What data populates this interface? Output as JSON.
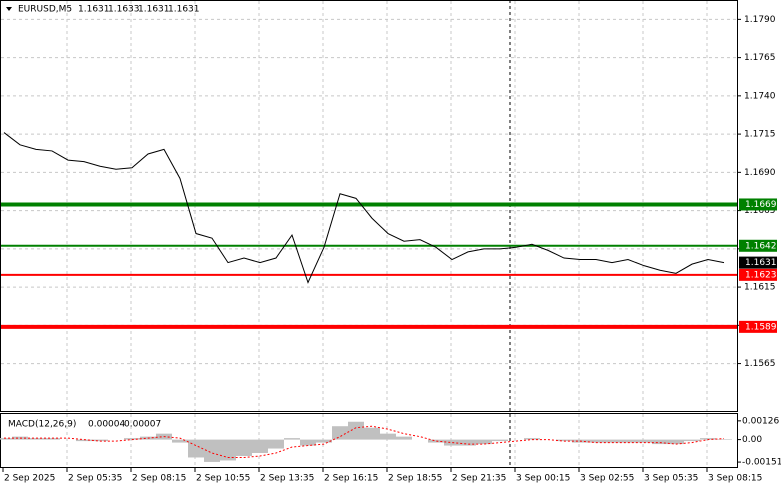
{
  "chart_data": {
    "type": "line",
    "series": [
      {
        "name": "EURUSD,M5",
        "color": "#000000",
        "values": [
          1.1716,
          1.1708,
          1.1705,
          1.1704,
          1.1698,
          1.1697,
          1.1694,
          1.1692,
          1.1693,
          1.1702,
          1.1705,
          1.1686,
          1.165,
          1.1647,
          1.1631,
          1.1634,
          1.1631,
          1.1634,
          1.1649,
          1.1618,
          1.1641,
          1.1676,
          1.1673,
          1.166,
          1.165,
          1.1645,
          1.1646,
          1.1641,
          1.1633,
          1.1638,
          1.164,
          1.164,
          1.1641,
          1.1643,
          1.1639,
          1.1634,
          1.1633,
          1.1633,
          1.1631,
          1.1633,
          1.1629,
          1.1626,
          1.1624,
          1.163,
          1.1633,
          1.1631
        ]
      }
    ],
    "ohlc": [
      1.1631,
      1.1633,
      1.1631,
      1.1631
    ],
    "current_price": 1.1631,
    "ylim": [
      1.1534,
      1.1802
    ],
    "yticks": [
      {
        "value": 1.179,
        "label": "1.1790"
      },
      1.1765,
      {
        "value": 1.174,
        "label": "1.1740"
      },
      1.1715,
      {
        "value": 1.169,
        "label": "1.1690"
      },
      1.1665,
      {
        "value": 1.164,
        "label": "1.1640"
      },
      1.1615,
      {
        "value": 1.159,
        "label": "1.1590"
      },
      1.1565
    ],
    "levels": [
      {
        "value": 1.1669,
        "color": "#008000",
        "style": "thick"
      },
      {
        "value": 1.1642,
        "color": "#008000",
        "style": "thin"
      },
      {
        "value": 1.1623,
        "color": "#ff0000",
        "style": "thin"
      },
      {
        "value": 1.1589,
        "color": "#ff0000",
        "style": "thick"
      }
    ],
    "x_labels": [
      "2 Sep 2025",
      "2 Sep 05:35",
      "2 Sep 08:15",
      "2 Sep 10:55",
      "2 Sep 13:35",
      "2 Sep 16:15",
      "2 Sep 18:55",
      "2 Sep 21:35",
      "3 Sep 00:15",
      "3 Sep 02:55",
      "3 Sep 05:35",
      "3 Sep 08:15"
    ],
    "grid": true,
    "macd": {
      "name": "MACD(12,26,9)",
      "current": [
        4e-05,
        7e-05
      ],
      "ylim": [
        -0.00184,
        0.00172
      ],
      "yticks": [
        0.00126,
        {
          "value": 0,
          "label": "0.00"
        },
        -0.00151
      ],
      "histogram_color": "#c0c0c0",
      "signal_color": "#ff0000",
      "histogram": [
        0.0001,
        0.0002,
        0.0001,
        0.0001,
        0,
        -0.0001,
        -0.0001,
        0,
        0.0001,
        0.0002,
        0.0004,
        -0.0002,
        -0.0012,
        -0.0015,
        -0.0014,
        -0.0011,
        -0.0009,
        -0.0006,
        0.0001,
        -0.0004,
        -0.0002,
        0.0009,
        0.0012,
        0.0008,
        0.0004,
        0.0002,
        0,
        -0.0002,
        -0.0004,
        -0.0004,
        -0.0003,
        -0.0001,
        0,
        0.0001,
        0,
        -0.0001,
        -0.0002,
        -0.0002,
        -0.0002,
        -0.0002,
        -0.0002,
        -0.0003,
        -0.0003,
        -0.0001,
        0.0001,
        4e-05
      ],
      "signal": [
        0.0001,
        0.0001,
        0.0001,
        0.0001,
        0.0001,
        0,
        -0.0001,
        -0.0001,
        0,
        0.0001,
        0.0002,
        0.0001,
        -0.0004,
        -0.0009,
        -0.0012,
        -0.0012,
        -0.0011,
        -0.0009,
        -0.0005,
        -0.0004,
        -0.0003,
        0.0002,
        0.0008,
        0.0009,
        0.0007,
        0.0004,
        0.0002,
        -0.0001,
        -0.0002,
        -0.0003,
        -0.0003,
        -0.0002,
        -0.0001,
        0,
        0,
        -0.0001,
        -0.0001,
        -0.0002,
        -0.0002,
        -0.0002,
        -0.0002,
        -0.0002,
        -0.0003,
        -0.0002,
        0,
        7e-05
      ]
    }
  }
}
